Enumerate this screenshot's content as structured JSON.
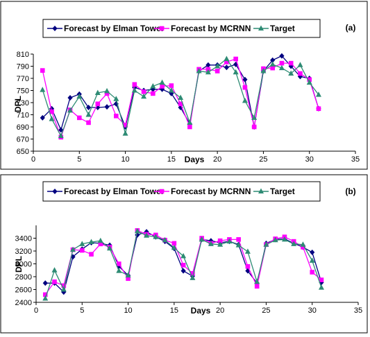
{
  "chart_data": [
    {
      "type": "line",
      "panel_label": "(a)",
      "xlabel": "Days",
      "ylabel": "DPL",
      "xlim": [
        0,
        35
      ],
      "ylim": [
        650,
        810
      ],
      "xticks": [
        0,
        5,
        10,
        15,
        20,
        25,
        30,
        35
      ],
      "yticks": [
        650,
        670,
        690,
        710,
        730,
        750,
        770,
        790,
        810
      ],
      "grid": false,
      "legend": "top",
      "x": [
        1,
        2,
        3,
        4,
        5,
        6,
        7,
        8,
        9,
        10,
        11,
        12,
        13,
        14,
        15,
        16,
        17,
        18,
        19,
        20,
        21,
        22,
        23,
        24,
        25,
        26,
        27,
        28,
        29,
        30,
        31
      ],
      "series": [
        {
          "name": "Forecast by Elman Tower",
          "color": "#000080",
          "marker": "diamond",
          "values": [
            705,
            720,
            685,
            738,
            744,
            722,
            722,
            723,
            728,
            690,
            755,
            750,
            752,
            752,
            745,
            722,
            695,
            782,
            792,
            792,
            788,
            793,
            768,
            690,
            782,
            800,
            807,
            790,
            773,
            770,
            720
          ]
        },
        {
          "name": "Forecast by MCRNN",
          "color": "#ff00ff",
          "marker": "square",
          "values": [
            783,
            715,
            673,
            718,
            705,
            697,
            728,
            745,
            708,
            693,
            760,
            748,
            745,
            757,
            758,
            728,
            690,
            785,
            785,
            782,
            797,
            802,
            755,
            690,
            786,
            787,
            795,
            795,
            778,
            768,
            720
          ]
        },
        {
          "name": "Target",
          "color": "#2e8b74",
          "marker": "triangle",
          "values": [
            751,
            703,
            675,
            717,
            740,
            710,
            746,
            749,
            736,
            679,
            750,
            740,
            757,
            763,
            750,
            738,
            697,
            782,
            780,
            790,
            802,
            780,
            733,
            705,
            782,
            793,
            787,
            778,
            792,
            763,
            743
          ]
        }
      ]
    },
    {
      "type": "line",
      "panel_label": "(b)",
      "xlabel": "Days",
      "ylabel": "DPL",
      "xlim": [
        0,
        35
      ],
      "ylim": [
        2400,
        3600
      ],
      "xticks": [
        0,
        5,
        10,
        15,
        20,
        25,
        30,
        35
      ],
      "yticks": [
        2400,
        2600,
        2800,
        3000,
        3200,
        3400
      ],
      "grid": false,
      "legend": "top",
      "x": [
        1,
        2,
        3,
        4,
        5,
        6,
        7,
        8,
        9,
        10,
        11,
        12,
        13,
        14,
        15,
        16,
        17,
        18,
        19,
        20,
        21,
        22,
        23,
        24,
        25,
        26,
        27,
        28,
        29,
        30,
        31
      ],
      "series": [
        {
          "name": "Forecast by Elman Tower",
          "color": "#000080",
          "marker": "diamond",
          "values": [
            2700,
            2700,
            2560,
            3110,
            3230,
            3330,
            3320,
            3290,
            2960,
            2820,
            3450,
            3500,
            3420,
            3350,
            3240,
            2890,
            2810,
            3380,
            3360,
            3330,
            3350,
            3300,
            2890,
            2700,
            3320,
            3380,
            3390,
            3320,
            3260,
            3180,
            2710
          ]
        },
        {
          "name": "Forecast by MCRNN",
          "color": "#ff00ff",
          "marker": "square",
          "values": [
            2520,
            2720,
            2660,
            3220,
            3210,
            3150,
            3310,
            3260,
            3000,
            2770,
            3520,
            3460,
            3450,
            3370,
            3320,
            2980,
            2850,
            3400,
            3320,
            3360,
            3380,
            3380,
            2960,
            2650,
            3300,
            3390,
            3420,
            3350,
            3260,
            2870,
            2750
          ]
        },
        {
          "name": "Target",
          "color": "#2e8b74",
          "marker": "triangle",
          "values": [
            2460,
            2900,
            2600,
            3220,
            3310,
            3340,
            3360,
            3240,
            2890,
            2820,
            3510,
            3440,
            3420,
            3370,
            3250,
            3120,
            2780,
            3380,
            3310,
            3300,
            3350,
            3290,
            3190,
            2720,
            3300,
            3370,
            3380,
            3310,
            3300,
            3050,
            2630
          ]
        }
      ]
    }
  ]
}
